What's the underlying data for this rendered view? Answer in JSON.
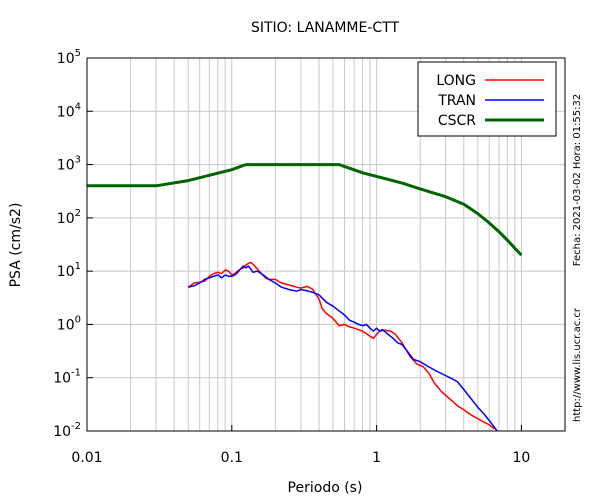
{
  "chart_data": {
    "type": "line",
    "title": "SITIO: LANAMME-CTT",
    "xlabel": "Periodo (s)",
    "ylabel": "PSA (cm/s2)",
    "xscale": "log",
    "yscale": "log",
    "xlim": [
      0.01,
      20
    ],
    "ylim": [
      0.01,
      100000
    ],
    "x_ticks": [
      {
        "value": 0.01,
        "label": "0.01"
      },
      {
        "value": 0.1,
        "label": "0.1"
      },
      {
        "value": 1,
        "label": "1"
      },
      {
        "value": 10,
        "label": "10"
      }
    ],
    "y_ticks": [
      {
        "value": 0.01,
        "base": "10",
        "exp": "-2"
      },
      {
        "value": 0.1,
        "base": "10",
        "exp": "-1"
      },
      {
        "value": 1,
        "base": "10",
        "exp": "0"
      },
      {
        "value": 10,
        "base": "10",
        "exp": "1"
      },
      {
        "value": 100,
        "base": "10",
        "exp": "2"
      },
      {
        "value": 1000,
        "base": "10",
        "exp": "3"
      },
      {
        "value": 10000,
        "base": "10",
        "exp": "4"
      },
      {
        "value": 100000,
        "base": "10",
        "exp": "5"
      }
    ],
    "grid": true,
    "legend_position": "top-right",
    "series": [
      {
        "name": "LONG",
        "color": "#ff0000",
        "points": [
          [
            0.05,
            5.0
          ],
          [
            0.055,
            6.0
          ],
          [
            0.06,
            6.2
          ],
          [
            0.065,
            6.5
          ],
          [
            0.07,
            8.0
          ],
          [
            0.075,
            9.0
          ],
          [
            0.08,
            9.5
          ],
          [
            0.085,
            9.0
          ],
          [
            0.09,
            10.5
          ],
          [
            0.095,
            10.0
          ],
          [
            0.1,
            8.5
          ],
          [
            0.105,
            9.0
          ],
          [
            0.11,
            10.0
          ],
          [
            0.115,
            11.0
          ],
          [
            0.12,
            11.5
          ],
          [
            0.125,
            13.0
          ],
          [
            0.13,
            14.0
          ],
          [
            0.135,
            14.5
          ],
          [
            0.14,
            13.5
          ],
          [
            0.15,
            11.0
          ],
          [
            0.16,
            9.0
          ],
          [
            0.17,
            7.5
          ],
          [
            0.18,
            7.0
          ],
          [
            0.2,
            7.0
          ],
          [
            0.22,
            6.0
          ],
          [
            0.25,
            5.5
          ],
          [
            0.28,
            5.0
          ],
          [
            0.3,
            4.8
          ],
          [
            0.33,
            5.2
          ],
          [
            0.36,
            4.6
          ],
          [
            0.4,
            3.0
          ],
          [
            0.42,
            2.0
          ],
          [
            0.45,
            1.6
          ],
          [
            0.5,
            1.3
          ],
          [
            0.55,
            0.95
          ],
          [
            0.6,
            1.0
          ],
          [
            0.65,
            0.9
          ],
          [
            0.7,
            0.85
          ],
          [
            0.8,
            0.75
          ],
          [
            0.9,
            0.6
          ],
          [
            0.95,
            0.55
          ],
          [
            1.0,
            0.65
          ],
          [
            1.05,
            0.75
          ],
          [
            1.15,
            0.78
          ],
          [
            1.25,
            0.75
          ],
          [
            1.35,
            0.65
          ],
          [
            1.5,
            0.45
          ],
          [
            1.7,
            0.25
          ],
          [
            1.9,
            0.18
          ],
          [
            2.1,
            0.16
          ],
          [
            2.3,
            0.12
          ],
          [
            2.5,
            0.08
          ],
          [
            2.8,
            0.055
          ],
          [
            3.2,
            0.04
          ],
          [
            3.6,
            0.03
          ],
          [
            4.0,
            0.025
          ],
          [
            4.5,
            0.02
          ],
          [
            5.2,
            0.016
          ],
          [
            6.0,
            0.013
          ],
          [
            6.5,
            0.011
          ]
        ]
      },
      {
        "name": "TRAN",
        "color": "#0000ff",
        "points": [
          [
            0.05,
            5.0
          ],
          [
            0.055,
            5.3
          ],
          [
            0.06,
            6.0
          ],
          [
            0.065,
            7.0
          ],
          [
            0.07,
            7.5
          ],
          [
            0.075,
            8.0
          ],
          [
            0.08,
            8.5
          ],
          [
            0.085,
            7.5
          ],
          [
            0.09,
            8.5
          ],
          [
            0.095,
            8.0
          ],
          [
            0.1,
            8.0
          ],
          [
            0.105,
            8.5
          ],
          [
            0.11,
            9.5
          ],
          [
            0.115,
            11.0
          ],
          [
            0.12,
            12.5
          ],
          [
            0.125,
            11.5
          ],
          [
            0.13,
            12.5
          ],
          [
            0.135,
            11.0
          ],
          [
            0.14,
            9.5
          ],
          [
            0.15,
            10.0
          ],
          [
            0.16,
            9.0
          ],
          [
            0.17,
            8.0
          ],
          [
            0.18,
            7.0
          ],
          [
            0.2,
            6.0
          ],
          [
            0.22,
            5.0
          ],
          [
            0.25,
            4.5
          ],
          [
            0.28,
            4.2
          ],
          [
            0.3,
            4.5
          ],
          [
            0.33,
            4.3
          ],
          [
            0.36,
            4.0
          ],
          [
            0.4,
            3.6
          ],
          [
            0.45,
            2.6
          ],
          [
            0.5,
            2.2
          ],
          [
            0.55,
            1.8
          ],
          [
            0.6,
            1.5
          ],
          [
            0.65,
            1.2
          ],
          [
            0.7,
            1.1
          ],
          [
            0.75,
            1.0
          ],
          [
            0.8,
            0.95
          ],
          [
            0.85,
            1.0
          ],
          [
            0.9,
            0.85
          ],
          [
            0.95,
            0.75
          ],
          [
            1.0,
            0.85
          ],
          [
            1.05,
            0.75
          ],
          [
            1.1,
            0.8
          ],
          [
            1.2,
            0.65
          ],
          [
            1.3,
            0.55
          ],
          [
            1.4,
            0.45
          ],
          [
            1.5,
            0.42
          ],
          [
            1.65,
            0.3
          ],
          [
            1.8,
            0.22
          ],
          [
            2.0,
            0.2
          ],
          [
            2.2,
            0.17
          ],
          [
            2.5,
            0.14
          ],
          [
            2.8,
            0.12
          ],
          [
            3.2,
            0.1
          ],
          [
            3.6,
            0.085
          ],
          [
            4.0,
            0.06
          ],
          [
            4.5,
            0.04
          ],
          [
            5.0,
            0.028
          ],
          [
            5.6,
            0.02
          ],
          [
            6.2,
            0.014
          ],
          [
            6.8,
            0.01
          ]
        ]
      },
      {
        "name": "CSCR",
        "color": "#006400",
        "points": [
          [
            0.01,
            400
          ],
          [
            0.03,
            400
          ],
          [
            0.05,
            500
          ],
          [
            0.1,
            800
          ],
          [
            0.125,
            1000
          ],
          [
            0.55,
            1000
          ],
          [
            0.8,
            700
          ],
          [
            1.0,
            600
          ],
          [
            1.5,
            450
          ],
          [
            2.0,
            350
          ],
          [
            3.0,
            250
          ],
          [
            4.0,
            180
          ],
          [
            5.0,
            120
          ],
          [
            6.0,
            80
          ],
          [
            7.0,
            55
          ],
          [
            8.0,
            38
          ],
          [
            9.0,
            27
          ],
          [
            10.0,
            20
          ]
        ]
      }
    ]
  },
  "side_labels": {
    "timestamp": "Fecha: 2021-03-02 Hora: 01:55:32",
    "website": "http://www.lis.ucr.ac.cr"
  }
}
